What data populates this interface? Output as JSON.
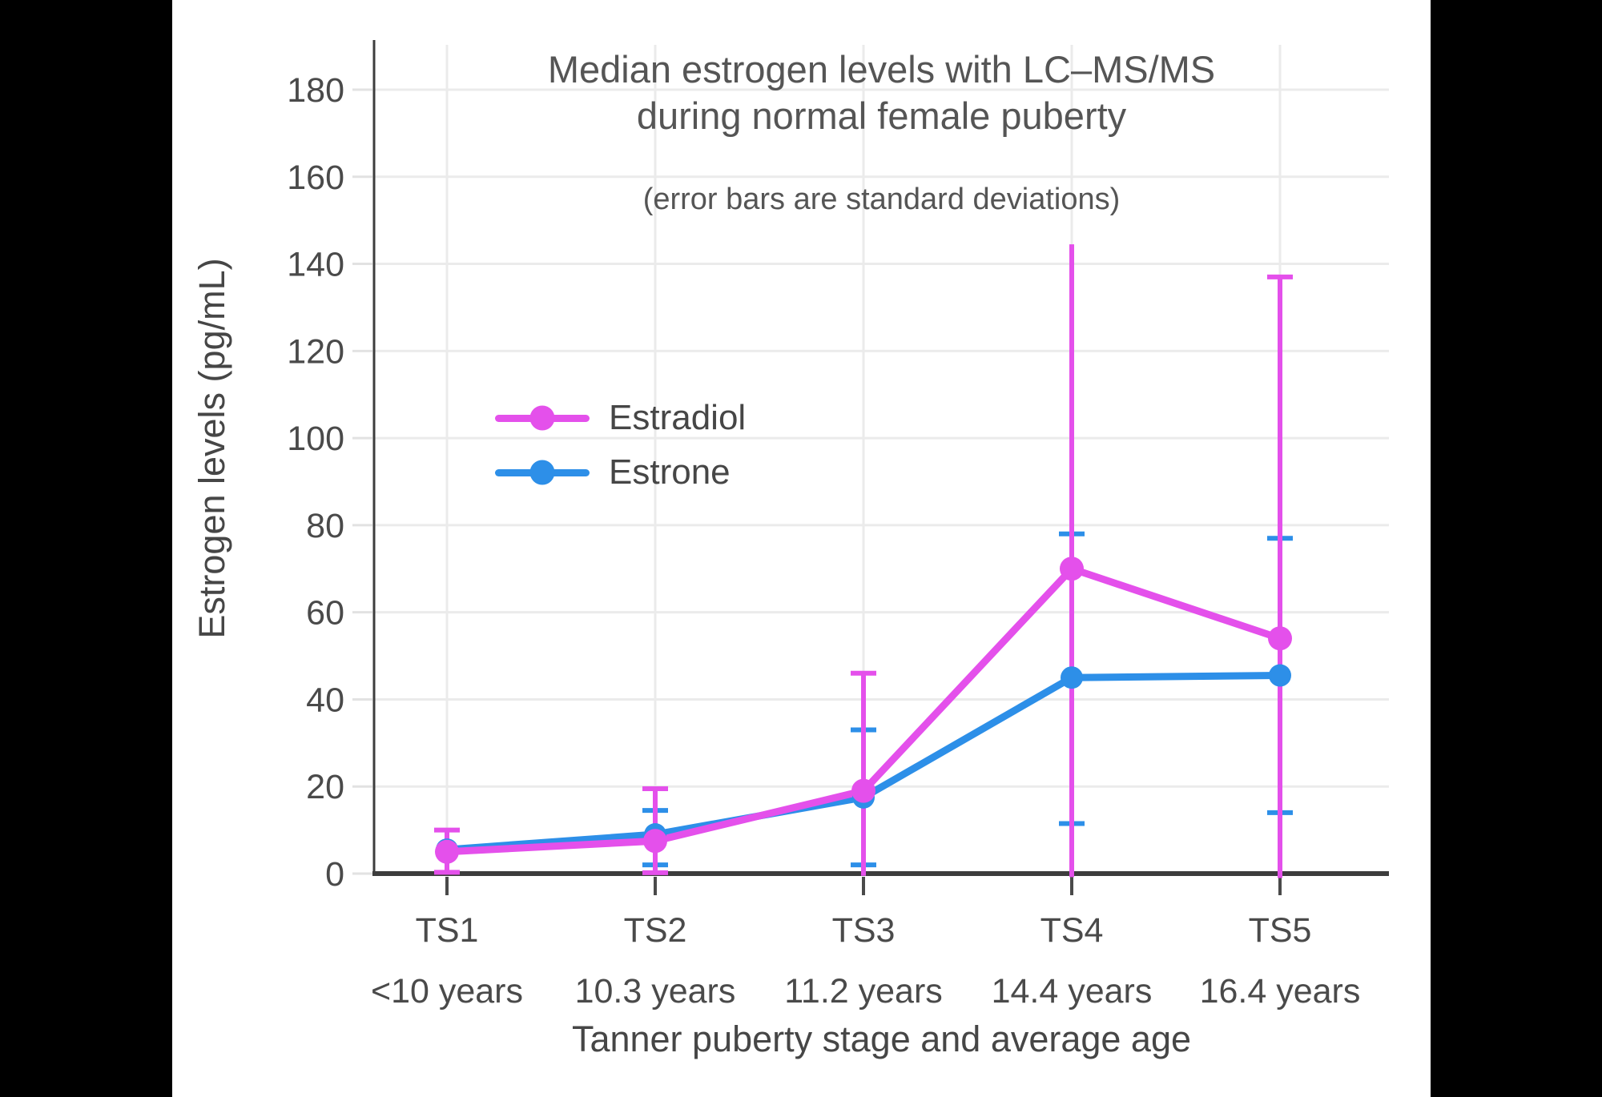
{
  "chart_data": {
    "type": "line",
    "title_line1": "Median estrogen levels with LC–MS/MS",
    "title_line2": "during normal female puberty",
    "subtitle": "(error bars are standard deviations)",
    "xlabel": "Tanner puberty stage and average age",
    "ylabel": "Estrogen levels (pg/mL)",
    "ylim": [
      0,
      190
    ],
    "yticks": [
      0,
      20,
      40,
      60,
      80,
      100,
      120,
      140,
      160,
      180
    ],
    "grid": "on",
    "legend_position": "upper-left-inside",
    "categories": [
      {
        "stage": "TS1",
        "age": "<10 years"
      },
      {
        "stage": "TS2",
        "age": "10.3 years"
      },
      {
        "stage": "TS3",
        "age": "11.2 years"
      },
      {
        "stage": "TS4",
        "age": "14.4 years"
      },
      {
        "stage": "TS5",
        "age": "16.4 years"
      }
    ],
    "series": [
      {
        "name": "Estradiol",
        "color": "#E450EB",
        "medians": [
          5,
          7.5,
          19,
          70,
          54
        ],
        "sd_high": [
          10,
          19.5,
          46,
          144.5,
          137
        ],
        "sd_low": [
          0.3,
          0.2,
          -0.5,
          -0.8,
          -1
        ],
        "cap_high": [
          true,
          true,
          true,
          false,
          true
        ],
        "cap_low": [
          true,
          true,
          false,
          false,
          false
        ]
      },
      {
        "name": "Estrone",
        "color": "#2D8FE8",
        "medians": [
          5.5,
          9,
          17.5,
          45,
          45.5
        ],
        "sd_high": [
          null,
          14.5,
          33,
          78,
          77
        ],
        "sd_low": [
          null,
          2,
          2,
          11.5,
          14
        ],
        "cap_high": [
          false,
          true,
          true,
          true,
          true
        ],
        "cap_low": [
          false,
          true,
          true,
          true,
          true
        ]
      }
    ]
  }
}
